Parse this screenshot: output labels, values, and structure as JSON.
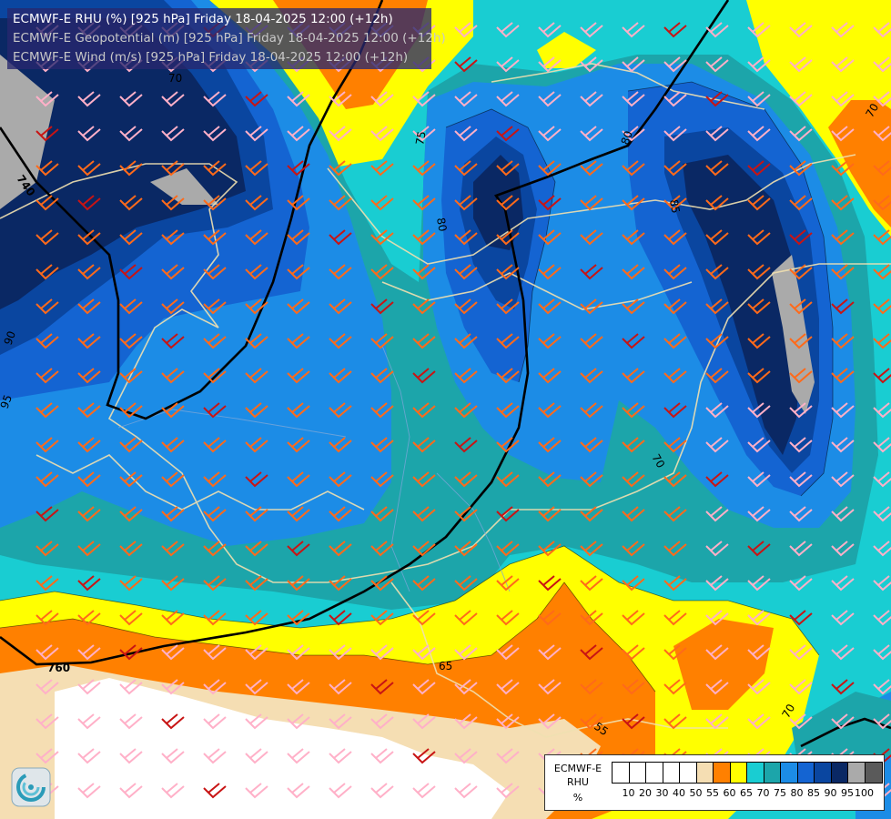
{
  "titles": {
    "rhu": "ECMWF-E RHU (%) [925 hPa] Friday 18-04-2025 12:00 (+12h)",
    "geopotential": "ECMWF-E Geopotential (m) [925 hPa] Friday 18-04-2025 12:00 (+12h)",
    "wind": "ECMWF-E Wind (m/s) [925 hPa] Friday 18-04-2025 12:00 (+12h)"
  },
  "legend": {
    "model": "ECMWF-E",
    "variable": "RHU",
    "unit": "%",
    "ticks": [
      "10",
      "20",
      "30",
      "40",
      "50",
      "55",
      "60",
      "65",
      "70",
      "75",
      "80",
      "85",
      "90",
      "95",
      "100"
    ],
    "colors": [
      "#ffffff",
      "#ffffff",
      "#ffffff",
      "#ffffff",
      "#ffffff",
      "#f5deb3",
      "#ff8000",
      "#ffff00",
      "#19cdd2",
      "#1ca5aa",
      "#1c8ce6",
      "#1464d2",
      "#0a46a0",
      "#0a2864",
      "#aaaaaa",
      "#5a5a5a"
    ]
  },
  "contour_labels": {
    "geopotential": [
      "740",
      "760"
    ],
    "rhu": [
      "70",
      "75",
      "80",
      "80",
      "85",
      "90",
      "95",
      "70",
      "65",
      "55",
      "70",
      "70"
    ]
  },
  "logo": {
    "icon": "swirl-logo-icon"
  }
}
